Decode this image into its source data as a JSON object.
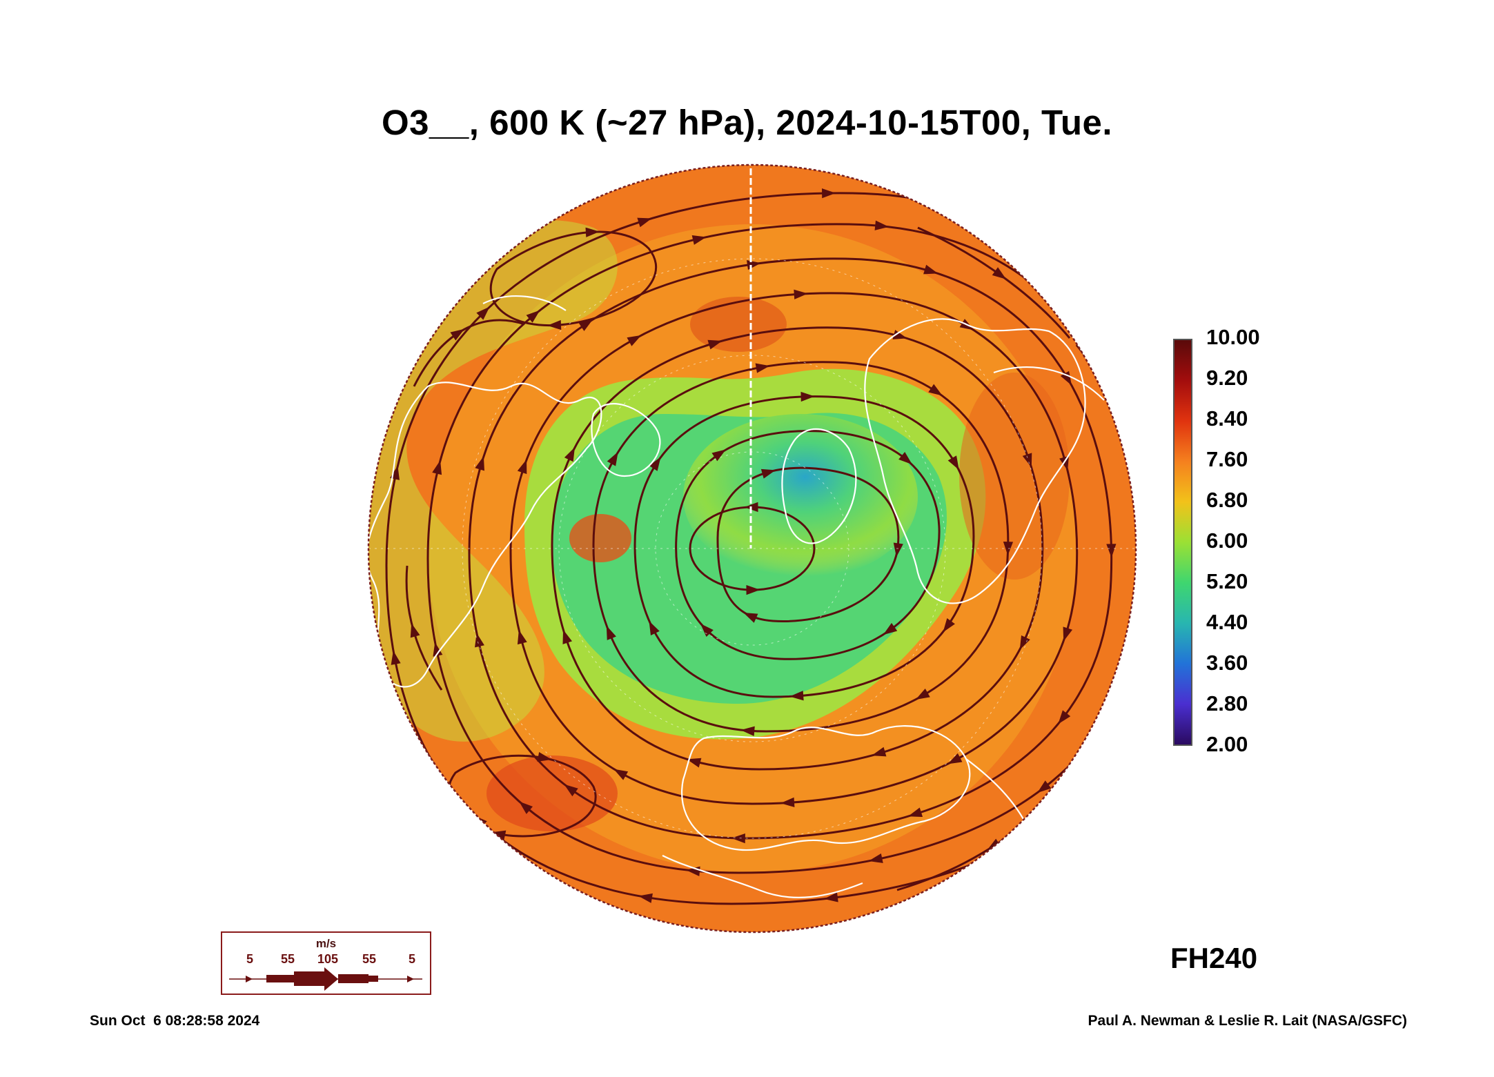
{
  "title": "O3__, 600 K (~27 hPa), 2024-10-15T00, Tue.",
  "colorbar": {
    "labels": [
      "10.00",
      "9.20",
      "8.40",
      "7.60",
      "6.80",
      "6.00",
      "5.20",
      "4.40",
      "3.60",
      "2.80",
      "2.00"
    ],
    "gradient_colors": [
      "#5a0a0a",
      "#a30d0d",
      "#e0330f",
      "#f5801e",
      "#f2c21a",
      "#9be034",
      "#3fd66f",
      "#28b6b0",
      "#2273d8",
      "#4a2fd0",
      "#2a0a60"
    ]
  },
  "forecast_hour": "FH240",
  "wind_key": {
    "unit": "m/s",
    "values": [
      "5",
      "55",
      "105",
      "55",
      "5"
    ]
  },
  "timestamp": "Sun Oct  6 08:28:58 2024",
  "credit": "Paul A. Newman & Leslie R. Lait (NASA/GSFC)",
  "map": {
    "projection": "north-polar-stereographic",
    "field": "ozone mixing ratio",
    "colors": {
      "ring_outer": "#f0781e",
      "vortex_edge": "#b5e03a",
      "vortex_inner": "#4fd27a",
      "vortex_core": "#2aa6c8",
      "streamline": "#5a0e0e",
      "coastline": "#ffffff"
    }
  }
}
